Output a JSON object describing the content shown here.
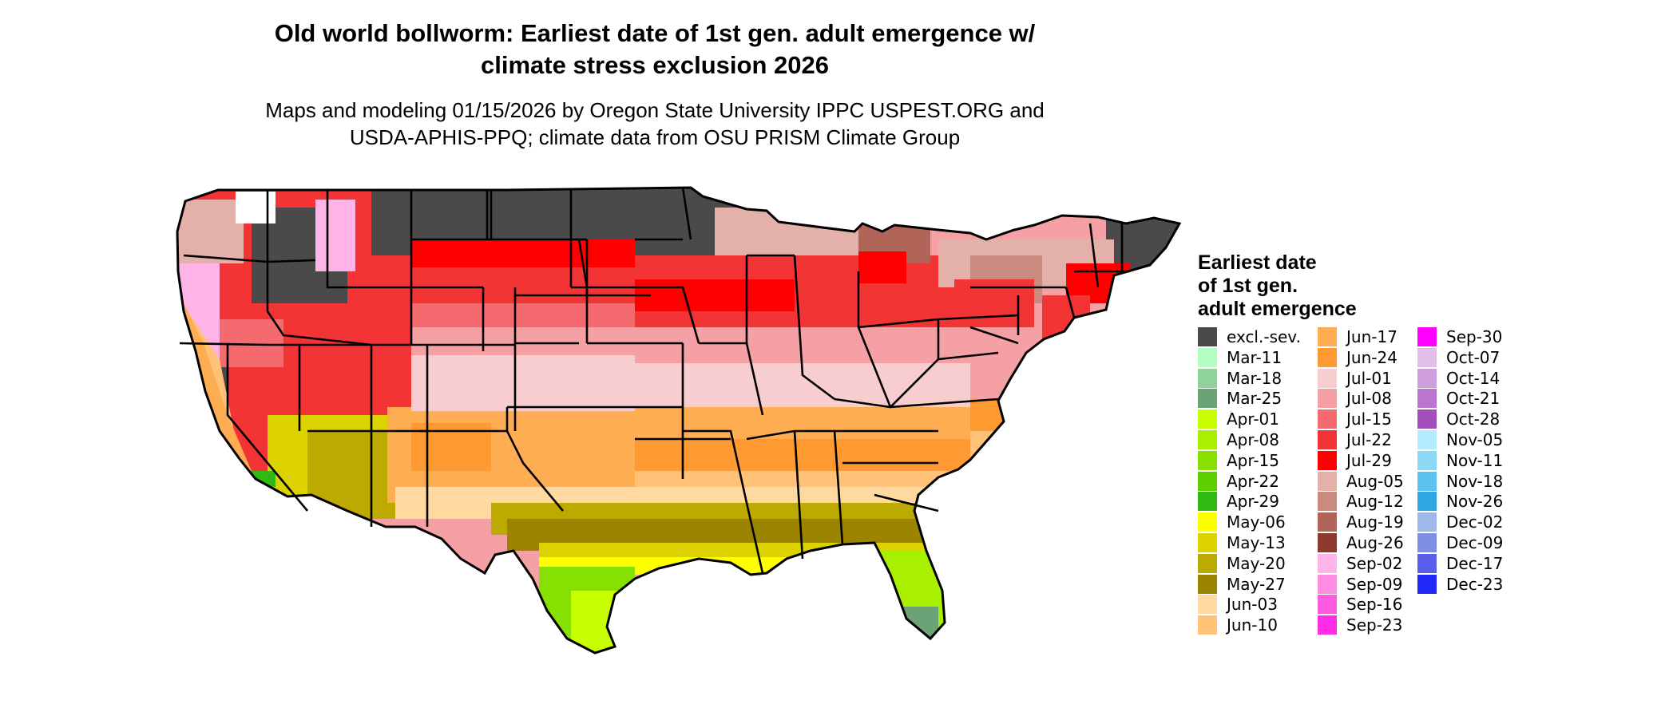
{
  "title_line1": "Old world bollworm: Earliest date of 1st gen. adult emergence w/",
  "title_line2": "climate stress exclusion 2026",
  "subtitle_line1": "Maps and modeling 01/15/2026 by Oregon State University IPPC USPEST.ORG and",
  "subtitle_line2": "USDA-APHIS-PPQ; climate data from OSU PRISM Climate Group",
  "legend": {
    "title_lines": [
      "Earliest date",
      "of 1st gen.",
      "adult emergence"
    ],
    "columns": [
      [
        {
          "label": "excl.-sev.",
          "color": "#4a4a4a"
        },
        {
          "label": "Mar-11",
          "color": "#b5ffc2"
        },
        {
          "label": "Mar-18",
          "color": "#8fd39b"
        },
        {
          "label": "Mar-25",
          "color": "#6ba377"
        },
        {
          "label": "Apr-01",
          "color": "#c8ff00"
        },
        {
          "label": "Apr-08",
          "color": "#a8f000"
        },
        {
          "label": "Apr-15",
          "color": "#86e000"
        },
        {
          "label": "Apr-22",
          "color": "#5fcf00"
        },
        {
          "label": "Apr-29",
          "color": "#32b814"
        },
        {
          "label": "May-06",
          "color": "#ffff00"
        },
        {
          "label": "May-13",
          "color": "#dcd200"
        },
        {
          "label": "May-20",
          "color": "#bdaa00"
        },
        {
          "label": "May-27",
          "color": "#9a8400"
        },
        {
          "label": "Jun-03",
          "color": "#ffd9a0"
        },
        {
          "label": "Jun-10",
          "color": "#ffc277"
        }
      ],
      [
        {
          "label": "Jun-17",
          "color": "#ffad52"
        },
        {
          "label": "Jun-24",
          "color": "#ff9a33"
        },
        {
          "label": "Jul-01",
          "color": "#f7cdd0"
        },
        {
          "label": "Jul-08",
          "color": "#f5a0a5"
        },
        {
          "label": "Jul-15",
          "color": "#f56a6e"
        },
        {
          "label": "Jul-22",
          "color": "#f33434"
        },
        {
          "label": "Jul-29",
          "color": "#ff0000"
        },
        {
          "label": "Aug-05",
          "color": "#e3b1aa"
        },
        {
          "label": "Aug-12",
          "color": "#ca8a80"
        },
        {
          "label": "Aug-19",
          "color": "#b16558"
        },
        {
          "label": "Aug-26",
          "color": "#8c3a2b"
        },
        {
          "label": "Sep-02",
          "color": "#ffb3e6"
        },
        {
          "label": "Sep-09",
          "color": "#ff8ce0"
        },
        {
          "label": "Sep-16",
          "color": "#ff5ae0"
        },
        {
          "label": "Sep-23",
          "color": "#ff2ee6"
        }
      ],
      [
        {
          "label": "Sep-30",
          "color": "#ff00ff"
        },
        {
          "label": "Oct-07",
          "color": "#e1bfe8"
        },
        {
          "label": "Oct-14",
          "color": "#cf9fdd"
        },
        {
          "label": "Oct-21",
          "color": "#bb77d0"
        },
        {
          "label": "Oct-28",
          "color": "#a24fbc"
        },
        {
          "label": "Nov-05",
          "color": "#b3ecff"
        },
        {
          "label": "Nov-11",
          "color": "#8cd8f5"
        },
        {
          "label": "Nov-18",
          "color": "#5cc2ef"
        },
        {
          "label": "Nov-26",
          "color": "#2ea8e0"
        },
        {
          "label": "Dec-02",
          "color": "#a0b8e8"
        },
        {
          "label": "Dec-09",
          "color": "#7d90e6"
        },
        {
          "label": "Dec-17",
          "color": "#5860eb"
        },
        {
          "label": "Dec-23",
          "color": "#1f28f5"
        }
      ]
    ]
  }
}
